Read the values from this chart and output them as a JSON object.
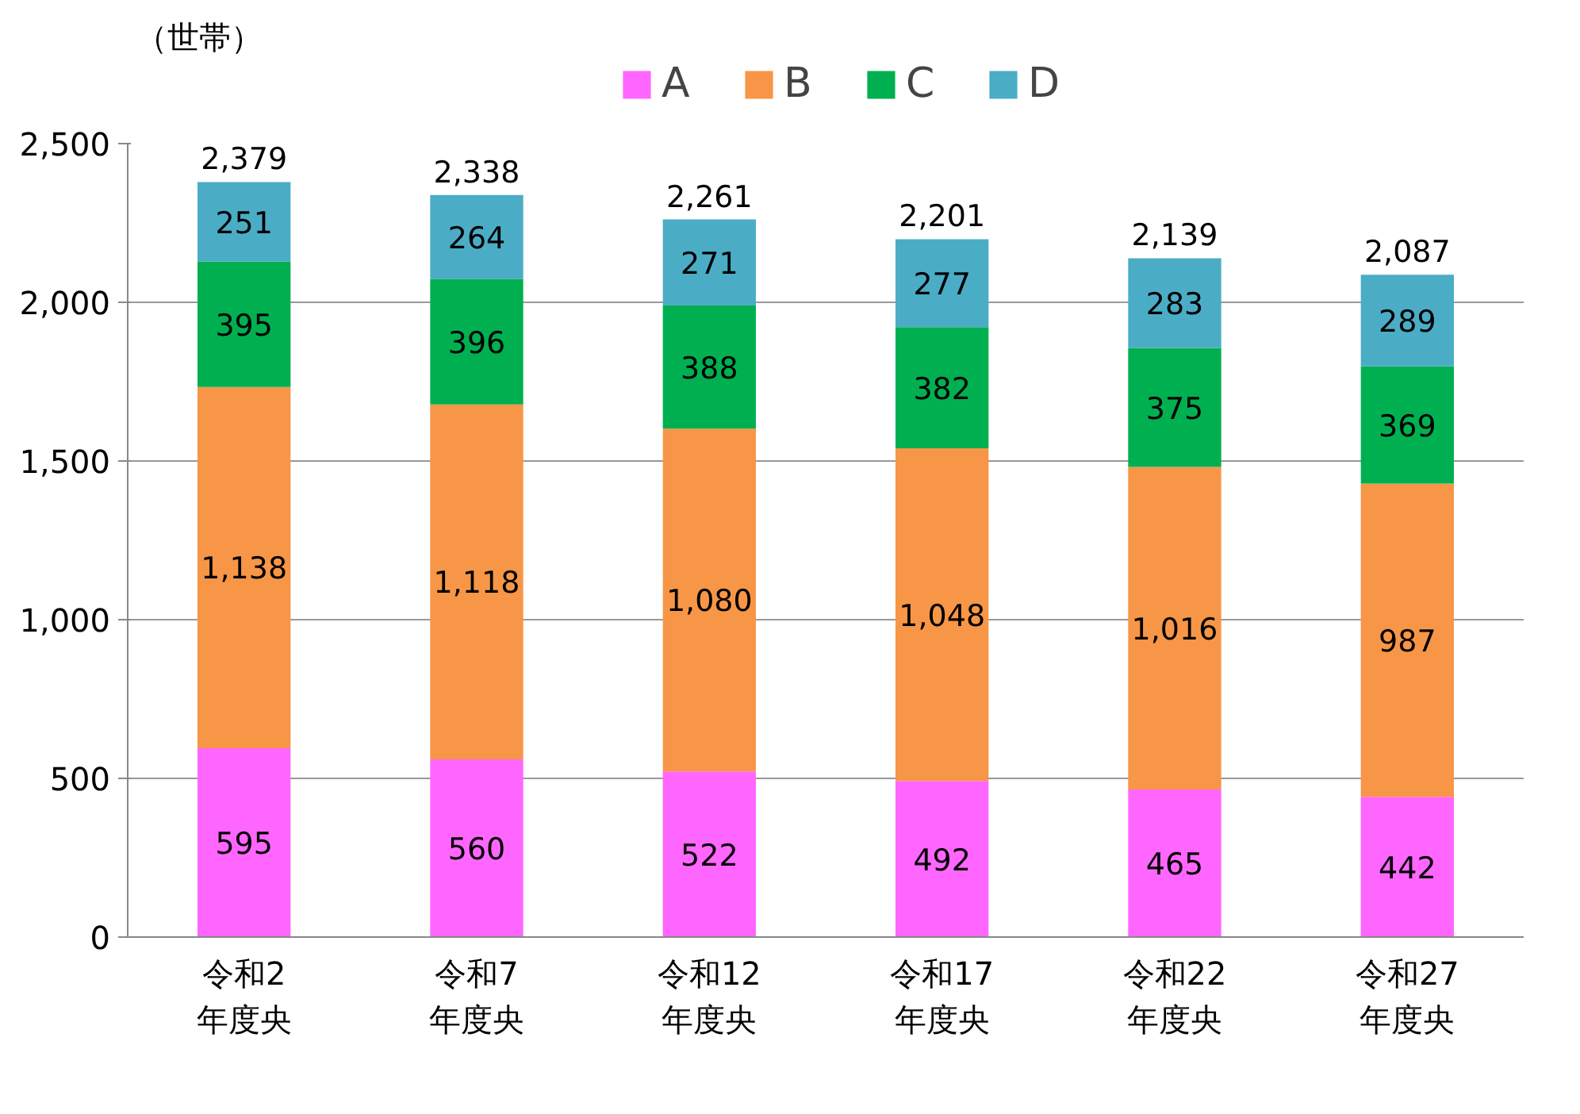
{
  "chart_data": {
    "type": "bar",
    "stacked": true,
    "ylabel": "（世帯）",
    "categories": [
      "令和2\n年度央",
      "令和7\n年度央",
      "令和12\n年度央",
      "令和17\n年度央",
      "令和22\n年度央",
      "令和27\n年度央"
    ],
    "series": [
      {
        "name": "A",
        "color": "#ff66ff",
        "values": [
          595,
          560,
          522,
          492,
          465,
          442
        ]
      },
      {
        "name": "B",
        "color": "#f79646",
        "values": [
          1138,
          1118,
          1080,
          1048,
          1016,
          987
        ],
        "value_labels": [
          "1,138",
          "1,118",
          "1,080",
          "1,048",
          "1,016",
          "987"
        ]
      },
      {
        "name": "C",
        "color": "#00b050",
        "values": [
          395,
          396,
          388,
          382,
          375,
          369
        ]
      },
      {
        "name": "D",
        "color": "#4bacc6",
        "values": [
          251,
          264,
          271,
          277,
          283,
          289
        ]
      }
    ],
    "totals": [
      "2,379",
      "2,338",
      "2,261",
      "2,201",
      "2,139",
      "2,087"
    ],
    "data_labels": true,
    "ylim": [
      0,
      2500
    ],
    "yticks": [
      0,
      {
        "value": 500,
        "label": "500"
      },
      {
        "value": 1000,
        "label": "1,000"
      },
      {
        "value": 1500,
        "label": "1,500"
      },
      {
        "value": 2000,
        "label": "2,000"
      },
      {
        "value": 2500,
        "label": "2,500"
      }
    ],
    "grid": "y",
    "legend": "top"
  }
}
